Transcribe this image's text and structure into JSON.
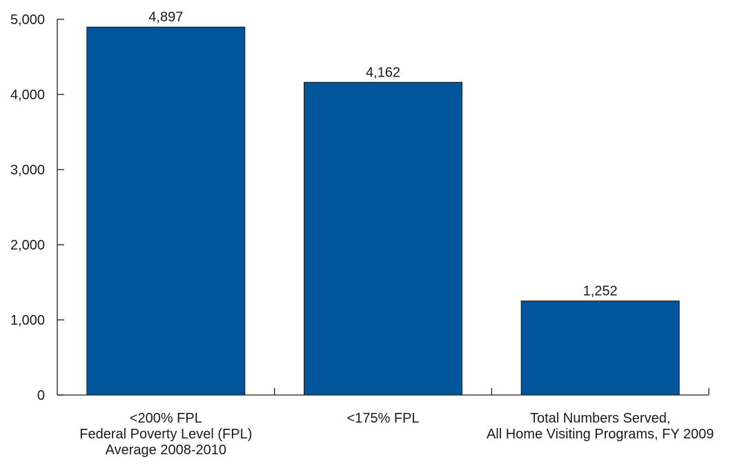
{
  "chart_data": {
    "type": "bar",
    "categories": [
      [
        "<200% FPL",
        "Federal Poverty Level (FPL)",
        "Average 2008-2010"
      ],
      [
        "<175% FPL"
      ],
      [
        "Total Numbers Served,",
        "All Home Visiting Programs, FY 2009"
      ]
    ],
    "values": [
      4897,
      4162,
      1252
    ],
    "data_labels": [
      "4,897",
      "4,162",
      "1,252"
    ],
    "title": "",
    "xlabel": "",
    "ylabel": "",
    "ylim": [
      0,
      5000
    ],
    "yticks": [
      0,
      1000,
      2000,
      3000,
      4000,
      5000
    ],
    "ytick_labels": [
      "0",
      "1,000",
      "2,000",
      "3,000",
      "4,000",
      "5,000"
    ],
    "grid": false,
    "legend": "none",
    "bar_color": "#00559b",
    "bar_edge_color": "#1a1a1a",
    "axis_color": "#1a1a1a"
  }
}
